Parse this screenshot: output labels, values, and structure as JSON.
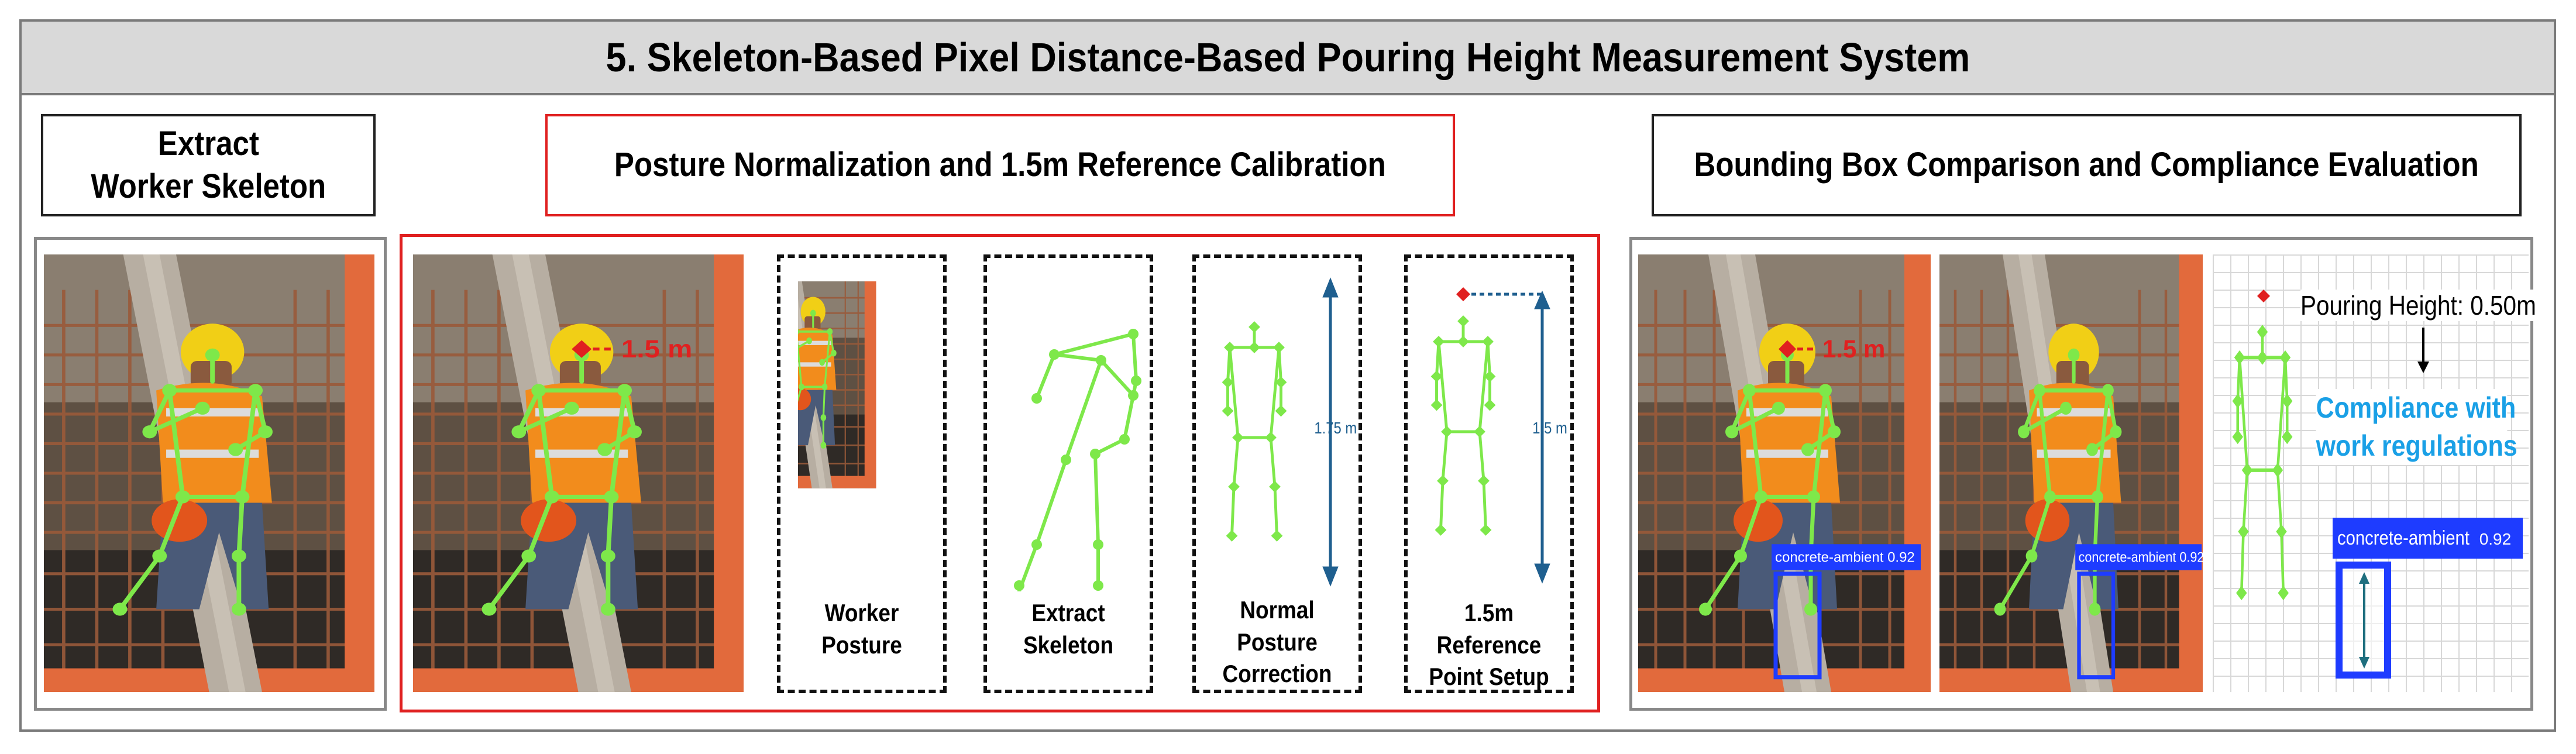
{
  "title": "5. Skeleton-Based Pixel Distance-Based Pouring Height Measurement System",
  "sections": {
    "extract": {
      "heading_line1": "Extract",
      "heading_line2": "Worker Skeleton"
    },
    "normalize": {
      "heading": "Posture Normalization and 1.5m Reference Calibration",
      "photo_label": "1.5 m",
      "steps": [
        {
          "line1": "Worker",
          "line2": "Posture"
        },
        {
          "line1": "Extract",
          "line2": "Skeleton"
        },
        {
          "line1": "Normal",
          "line2": "Posture",
          "line3": "Correction",
          "measure": "1.75 m"
        },
        {
          "line1": "1.5m Reference",
          "line2": "Point Setup",
          "measure": "1.5 m"
        }
      ]
    },
    "compare": {
      "heading": "Bounding Box Comparison and Compliance Evaluation",
      "photo_label": "1.5 m",
      "bbox_label": "concrete-ambient",
      "bbox_score": "0.92",
      "pouring_height": "Pouring Height: 0.50m",
      "compliance_line1": "Compliance with",
      "compliance_line2": "work regulations"
    }
  },
  "colors": {
    "skeleton": "#7ee84a",
    "accent_red": "#e02020",
    "bbox_blue": "#1e3cff",
    "measure_blue": "#1f5f8f",
    "compliance_text": "#1aa0e6"
  },
  "icons": [
    "worker-photo",
    "skeleton-figure",
    "keypoint-marker",
    "dimension-arrow",
    "bounding-box"
  ]
}
